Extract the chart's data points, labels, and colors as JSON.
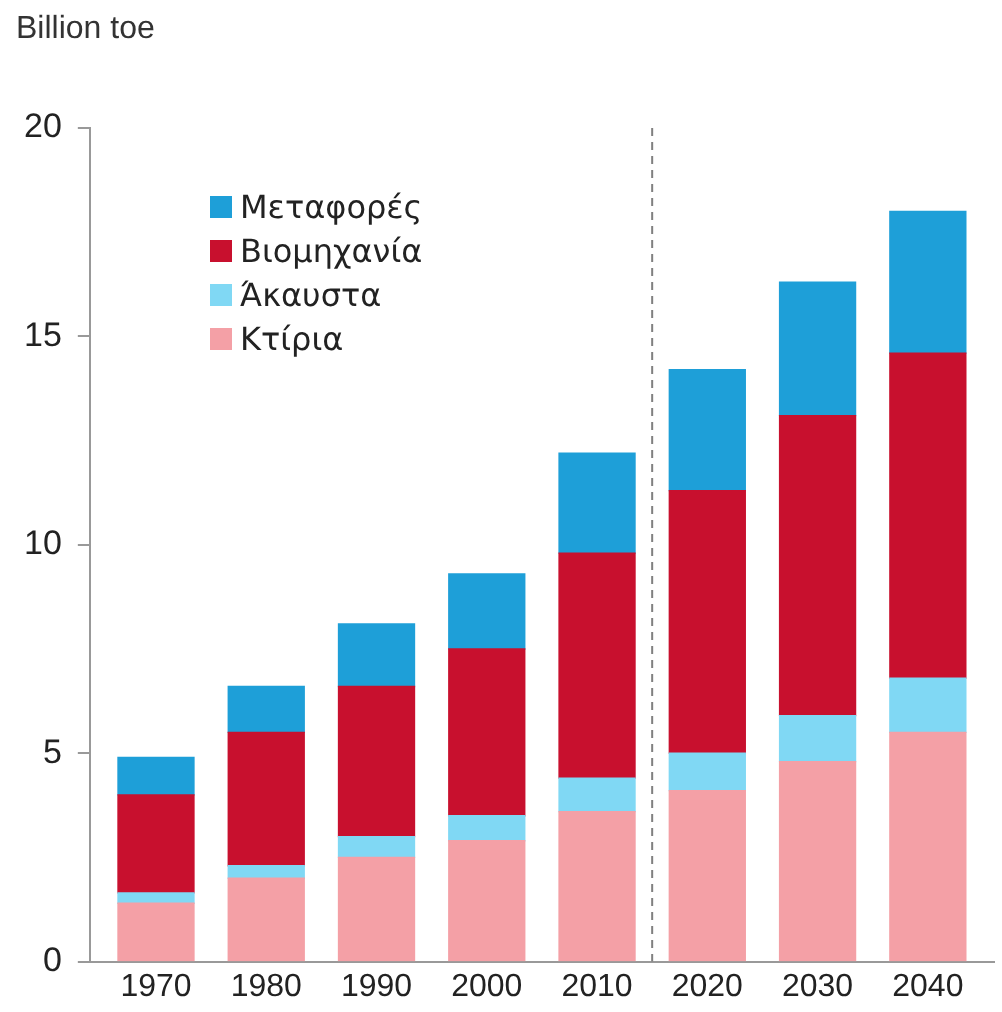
{
  "chart_data": {
    "type": "bar",
    "ylabel": "Billion toe",
    "stacked": true,
    "x": [
      1970,
      1980,
      1990,
      2000,
      2010,
      2020,
      2030,
      2040
    ],
    "xlim": [
      1964,
      2046
    ],
    "xticks": [
      1970,
      1980,
      1990,
      2000,
      2010,
      2020,
      2030,
      2040
    ],
    "ylim": [
      0,
      20
    ],
    "yticks": [
      0,
      5,
      10,
      15,
      20
    ],
    "grid": false,
    "legend": "top left",
    "ref_lines": [
      {
        "axis": "x",
        "value": 2015,
        "color": "#808080",
        "line_style": "dashed"
      }
    ],
    "series": [
      {
        "name": "Κτίρια",
        "color": "#f4a0a6",
        "values": [
          1.4,
          2.0,
          2.5,
          2.9,
          3.6,
          4.1,
          4.8,
          5.5
        ]
      },
      {
        "name": "Άκαυστα",
        "color": "#80d8f4",
        "values": [
          0.25,
          0.3,
          0.5,
          0.6,
          0.8,
          0.9,
          1.1,
          1.3
        ]
      },
      {
        "name": "Βιομηχανία",
        "color": "#c8102e",
        "values": [
          2.35,
          3.2,
          3.6,
          4.0,
          5.4,
          6.3,
          7.2,
          7.8
        ]
      },
      {
        "name": "Μεταφορές",
        "color": "#1e9fd8",
        "values": [
          0.9,
          1.1,
          1.5,
          1.8,
          2.4,
          2.9,
          3.2,
          3.4
        ]
      }
    ]
  }
}
